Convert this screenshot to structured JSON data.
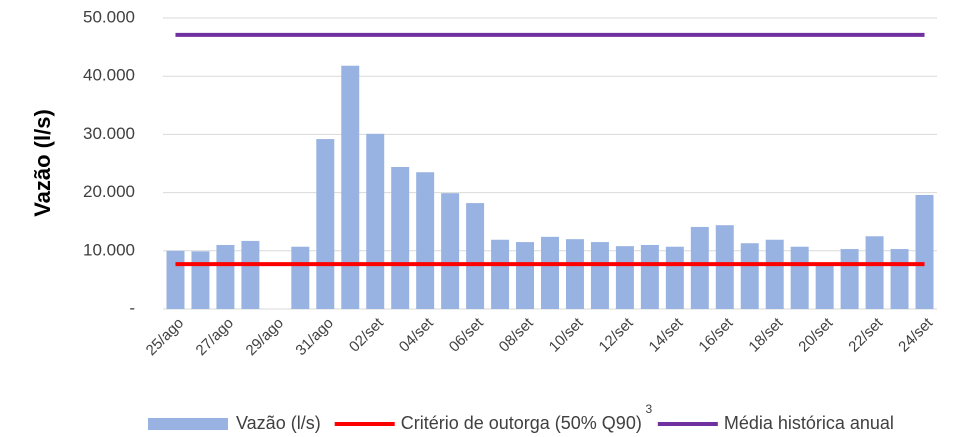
{
  "chart_data": {
    "type": "bar",
    "y_axis_label": "Vazão (l/s)",
    "categories": [
      "25/ago",
      null,
      "27/ago",
      null,
      "29/ago",
      null,
      "31/ago",
      null,
      "02/set",
      null,
      "04/set",
      null,
      "06/set",
      null,
      "08/set",
      null,
      "10/set",
      null,
      "12/set",
      null,
      "14/set",
      null,
      "16/set",
      null,
      "18/set",
      null,
      "20/set",
      null,
      "22/set",
      null,
      "24/set"
    ],
    "series": [
      {
        "name": "Vazão (l/s)",
        "type": "bar",
        "color": "#98b3e2",
        "values": [
          10000,
          9900,
          11000,
          11700,
          null,
          10700,
          29200,
          41800,
          30100,
          24400,
          23500,
          19900,
          18200,
          11900,
          11500,
          12400,
          12000,
          11500,
          10800,
          11000,
          10700,
          14100,
          14400,
          11300,
          11900,
          10700,
          7700,
          10300,
          12500,
          10300,
          19600
        ]
      },
      {
        "name": "Critério de outorga (50% Q90)",
        "type": "line",
        "color": "#ff0000",
        "values": [
          7700,
          7700,
          7700,
          7700,
          7700,
          7700,
          7700,
          7700,
          7700,
          7700,
          7700,
          7700,
          7700,
          7700,
          7700,
          7700,
          7700,
          7700,
          7700,
          7700,
          7700,
          7700,
          7700,
          7700,
          7700,
          7700,
          7700,
          7700,
          7700,
          7700,
          7700
        ]
      },
      {
        "name": "Média histórica anual",
        "type": "line",
        "color": "#7030a0",
        "values": [
          47100,
          47100,
          47100,
          47100,
          47100,
          47100,
          47100,
          47100,
          47100,
          47100,
          47100,
          47100,
          47100,
          47100,
          47100,
          47100,
          47100,
          47100,
          47100,
          47100,
          47100,
          47100,
          47100,
          47100,
          47100,
          47100,
          47100,
          47100,
          47100,
          47100,
          47100
        ]
      }
    ],
    "legend_note": "3",
    "ylim": [
      0,
      50000
    ],
    "yticks": [
      {
        "value": 0,
        "label": "-"
      },
      {
        "value": 10000,
        "label": "10.000"
      },
      {
        "value": 20000,
        "label": "20.000"
      },
      {
        "value": 30000,
        "label": "30.000"
      },
      {
        "value": 40000,
        "label": "40.000"
      },
      {
        "value": 50000,
        "label": "50.000"
      }
    ],
    "grid": true,
    "legend": "bottom"
  }
}
